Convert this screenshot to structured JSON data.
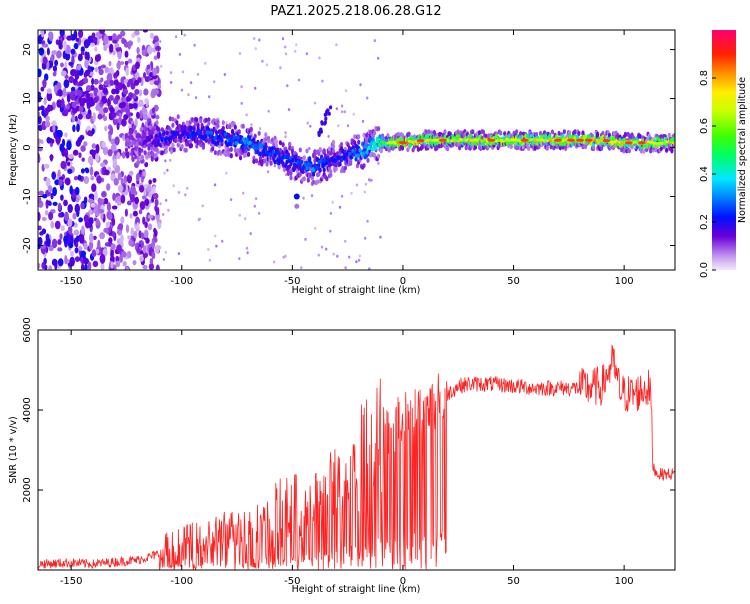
{
  "page": {
    "title": "PAZ1.2025.218.06.28.G12"
  },
  "chart_data": [
    {
      "type": "heatmap",
      "title": "PAZ1.2025.218.06.28.G12",
      "xlabel": "Height of straight line (km)",
      "ylabel": "Frequency (Hz)",
      "xlim": [
        -165,
        123
      ],
      "ylim": [
        -25,
        24
      ],
      "xticks": [
        -150,
        -100,
        -50,
        0,
        50,
        100
      ],
      "yticks": [
        -20,
        -10,
        0,
        10,
        20
      ],
      "colorbar": {
        "label": "Normalized spectral amplitude",
        "range": [
          0,
          1
        ],
        "ticks": [
          0.0,
          0.2,
          0.4,
          0.6,
          0.8
        ],
        "tick_labels": [
          "0.0",
          "0.2",
          "0.4",
          "0.6",
          "0.8"
        ]
      },
      "ridge": {
        "x": [
          -120,
          -110,
          -100,
          -90,
          -80,
          -70,
          -60,
          -50,
          -40,
          -30,
          -20,
          -10,
          0,
          10,
          50,
          90,
          100,
          123
        ],
        "freq": [
          1,
          2,
          3,
          2.5,
          2,
          1,
          -1,
          -3,
          -4,
          -2,
          -1,
          1,
          1,
          1.5,
          1.5,
          1.5,
          1,
          1
        ],
        "amplitude": [
          0.1,
          0.2,
          0.2,
          0.25,
          0.25,
          0.3,
          0.25,
          0.25,
          0.3,
          0.2,
          0.3,
          0.5,
          0.8,
          0.7,
          0.7,
          0.75,
          0.75,
          0.7
        ]
      }
    },
    {
      "type": "line",
      "xlabel": "Height of straight line (km)",
      "ylabel": "SNR (10 * v/v)",
      "xlim": [
        -165,
        123
      ],
      "ylim": [
        0,
        6000
      ],
      "xticks": [
        -150,
        -100,
        -50,
        0,
        50,
        100
      ],
      "yticks": [
        2000,
        4000,
        6000
      ],
      "color": "#ff2020",
      "x": [
        -165,
        -150,
        -140,
        -130,
        -120,
        -110,
        -100,
        -90,
        -80,
        -70,
        -60,
        -50,
        -40,
        -30,
        -20,
        -15,
        -10,
        -5,
        0,
        10,
        20,
        25,
        30,
        40,
        50,
        60,
        70,
        80,
        90,
        95,
        98,
        100,
        105,
        110,
        112,
        113,
        115,
        123
      ],
      "y": [
        150,
        180,
        150,
        200,
        250,
        400,
        600,
        800,
        1000,
        1100,
        1300,
        1500,
        1800,
        2200,
        2600,
        3000,
        3400,
        3600,
        3800,
        4000,
        4400,
        4600,
        4650,
        4650,
        4600,
        4550,
        4550,
        4550,
        4600,
        5200,
        4500,
        4400,
        4400,
        4550,
        4500,
        2600,
        2400,
        2400
      ]
    }
  ]
}
